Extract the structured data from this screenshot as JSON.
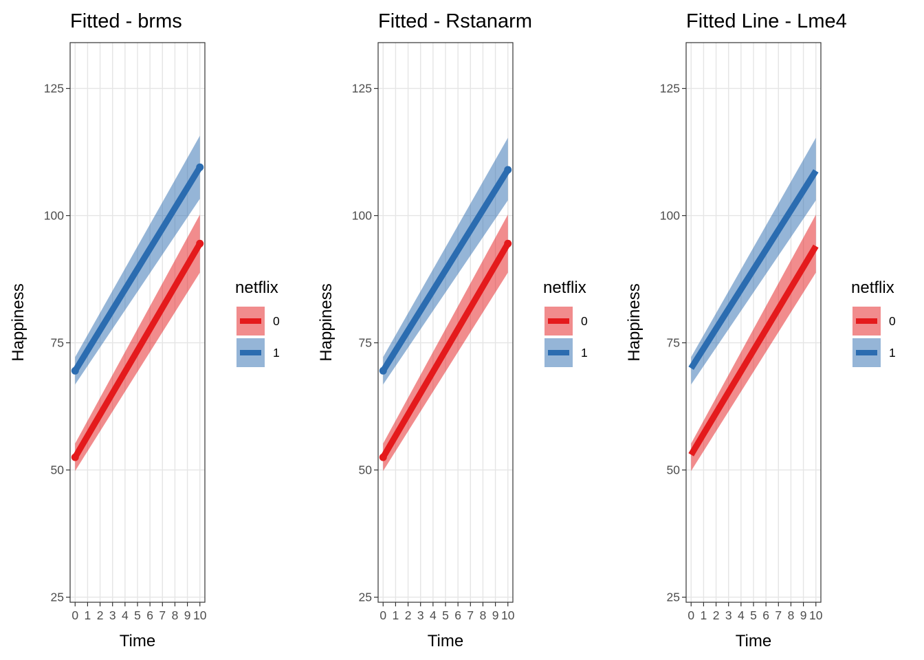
{
  "chart_data": [
    {
      "type": "line",
      "title": "Fitted - brms",
      "xlabel": "Time",
      "ylabel": "Happiness",
      "x": [
        0,
        1,
        2,
        3,
        4,
        5,
        6,
        7,
        8,
        9,
        10
      ],
      "x_tick_labels": [
        "0",
        "1",
        "2",
        "3",
        "4",
        "5",
        "6",
        "7",
        "8",
        "9",
        "10"
      ],
      "y_ticks": [
        25,
        50,
        75,
        100,
        125
      ],
      "y_tick_labels": [
        "25",
        "50",
        "75",
        "100",
        "125"
      ],
      "xlim": [
        -0.4,
        10.4
      ],
      "ylim": [
        24,
        134
      ],
      "grid": true,
      "legend": {
        "title": "netflix",
        "position": "right"
      },
      "series": [
        {
          "name": "0",
          "color": "#e41a1c",
          "start": 52.5,
          "end": 94.5,
          "lower_start": 49.8,
          "lower_end": 88.8,
          "upper_start": 55.2,
          "upper_end": 100.2,
          "end_point": true
        },
        {
          "name": "1",
          "color": "#2b6cb0",
          "start": 69.5,
          "end": 109.5,
          "lower_start": 66.8,
          "lower_end": 103.3,
          "upper_start": 72.2,
          "upper_end": 115.7,
          "end_point": true
        }
      ]
    },
    {
      "type": "line",
      "title": "Fitted - Rstanarm",
      "xlabel": "Time",
      "ylabel": "Happiness",
      "x": [
        0,
        1,
        2,
        3,
        4,
        5,
        6,
        7,
        8,
        9,
        10
      ],
      "x_tick_labels": [
        "0",
        "1",
        "2",
        "3",
        "4",
        "5",
        "6",
        "7",
        "8",
        "9",
        "10"
      ],
      "y_ticks": [
        25,
        50,
        75,
        100,
        125
      ],
      "y_tick_labels": [
        "25",
        "50",
        "75",
        "100",
        "125"
      ],
      "xlim": [
        -0.4,
        10.4
      ],
      "ylim": [
        24,
        134
      ],
      "grid": true,
      "legend": {
        "title": "netflix",
        "position": "right"
      },
      "series": [
        {
          "name": "0",
          "color": "#e41a1c",
          "start": 52.5,
          "end": 94.5,
          "lower_start": 49.8,
          "lower_end": 88.8,
          "upper_start": 55.2,
          "upper_end": 100.2,
          "end_point": true
        },
        {
          "name": "1",
          "color": "#2b6cb0",
          "start": 69.5,
          "end": 109.0,
          "lower_start": 66.8,
          "lower_end": 103.0,
          "upper_start": 72.2,
          "upper_end": 115.3,
          "end_point": true
        }
      ]
    },
    {
      "type": "line",
      "title": "Fitted Line - Lme4",
      "xlabel": "Time",
      "ylabel": "Happiness",
      "x": [
        0,
        1,
        2,
        3,
        4,
        5,
        6,
        7,
        8,
        9,
        10
      ],
      "x_tick_labels": [
        "0",
        "1",
        "2",
        "3",
        "4",
        "5",
        "6",
        "7",
        "8",
        "9",
        "10"
      ],
      "y_ticks": [
        25,
        50,
        75,
        100,
        125
      ],
      "y_tick_labels": [
        "25",
        "50",
        "75",
        "100",
        "125"
      ],
      "xlim": [
        -0.4,
        10.4
      ],
      "ylim": [
        24,
        134
      ],
      "grid": true,
      "legend": {
        "title": "netflix",
        "position": "right"
      },
      "series": [
        {
          "name": "0",
          "color": "#e41a1c",
          "start": 53.0,
          "end": 94.0,
          "lower_start": 49.8,
          "lower_end": 88.8,
          "upper_start": 55.2,
          "upper_end": 100.2,
          "end_point": false
        },
        {
          "name": "1",
          "color": "#2b6cb0",
          "start": 70.0,
          "end": 108.8,
          "lower_start": 66.8,
          "lower_end": 103.0,
          "upper_start": 72.2,
          "upper_end": 115.3,
          "end_point": false
        }
      ]
    }
  ]
}
